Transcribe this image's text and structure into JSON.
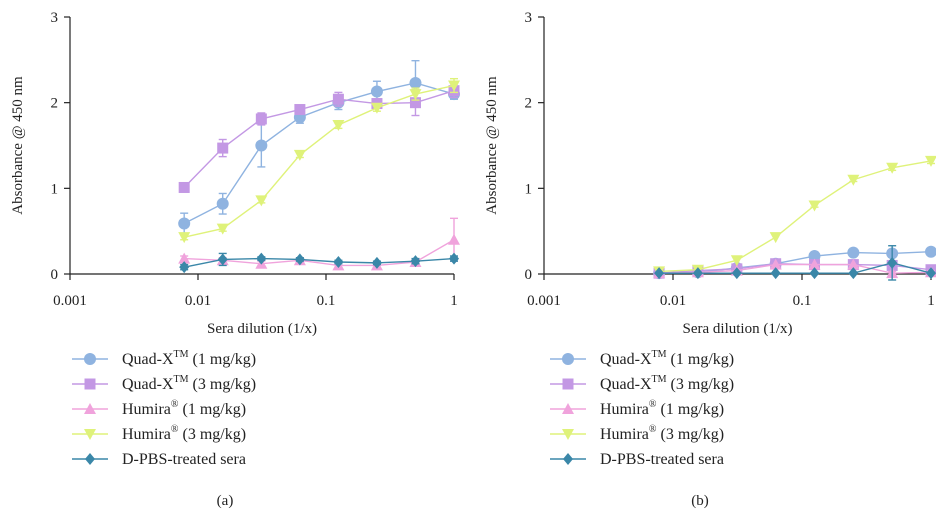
{
  "chart_data": [
    {
      "type": "line",
      "panel_label": "(a)",
      "xlabel": "Sera dilution (1/x)",
      "ylabel": "Absorbance @ 450 nm",
      "xscale": "log",
      "xlim": [
        0.001,
        1
      ],
      "ylim": [
        0,
        3
      ],
      "xticks": [
        {
          "v": 0.001,
          "label": "0.001"
        },
        {
          "v": 0.01,
          "label": "0.01"
        },
        {
          "v": 0.1,
          "label": "0.1"
        },
        {
          "v": 1,
          "label": "1"
        }
      ],
      "yticks": [
        {
          "v": 0,
          "label": "0"
        },
        {
          "v": 1,
          "label": "1"
        },
        {
          "v": 2,
          "label": "2"
        },
        {
          "v": 3,
          "label": "3"
        }
      ],
      "x": [
        0.0078,
        0.0156,
        0.03125,
        0.0625,
        0.125,
        0.25,
        0.5,
        1
      ],
      "series": [
        {
          "name": "Quad-X",
          "sup": "TM",
          "dose": " (1 mg/kg)",
          "color": "#8fb3e0",
          "marker": "circle",
          "values": [
            0.59,
            0.82,
            1.5,
            1.83,
            2.0,
            2.13,
            2.23,
            2.1
          ],
          "errors": [
            0.12,
            0.12,
            0.25,
            0.07,
            0.08,
            0.12,
            0.26,
            0.06
          ]
        },
        {
          "name": "Quad-X",
          "sup": "TM",
          "dose": " (3 mg/kg)",
          "color": "#c398e4",
          "marker": "square",
          "values": [
            1.01,
            1.47,
            1.81,
            1.92,
            2.04,
            1.99,
            2.0,
            2.14
          ],
          "errors": [
            0.0,
            0.1,
            0.07,
            0.04,
            0.08,
            0.05,
            0.15,
            0.08
          ]
        },
        {
          "name": "Humira",
          "sup": "®",
          "dose": " (1 mg/kg)",
          "color": "#f0a3dc",
          "marker": "triangle-up",
          "values": [
            0.18,
            0.16,
            0.12,
            0.16,
            0.1,
            0.1,
            0.14,
            0.4
          ],
          "errors": [
            0.03,
            0.03,
            0.03,
            0.03,
            0.03,
            0.02,
            0.03,
            0.25
          ]
        },
        {
          "name": "Humira",
          "sup": "®",
          "dose": " (3 mg/kg)",
          "color": "#dff27a",
          "marker": "triangle-down",
          "values": [
            0.43,
            0.53,
            0.86,
            1.39,
            1.74,
            1.94,
            2.1,
            2.2
          ],
          "errors": [
            0.03,
            0.03,
            0.03,
            0.03,
            0.04,
            0.04,
            0.07,
            0.08
          ]
        },
        {
          "name": "D-PBS-treated sera",
          "sup": "",
          "dose": "",
          "color": "#3a87a8",
          "marker": "diamond",
          "values": [
            0.08,
            0.17,
            0.18,
            0.17,
            0.14,
            0.13,
            0.15,
            0.18
          ],
          "errors": [
            0.03,
            0.07,
            0.02,
            0.02,
            0.02,
            0.02,
            0.03,
            0.03
          ]
        }
      ]
    },
    {
      "type": "line",
      "panel_label": "(b)",
      "xlabel": "Sera dilution (1/x)",
      "ylabel": "Absorbance @ 450 nm",
      "xscale": "log",
      "xlim": [
        0.001,
        1
      ],
      "ylim": [
        0,
        3
      ],
      "xticks": [
        {
          "v": 0.001,
          "label": "0.001"
        },
        {
          "v": 0.01,
          "label": "0.01"
        },
        {
          "v": 0.1,
          "label": "0.1"
        },
        {
          "v": 1,
          "label": "1"
        }
      ],
      "yticks": [
        {
          "v": 0,
          "label": "0"
        },
        {
          "v": 1,
          "label": "1"
        },
        {
          "v": 2,
          "label": "2"
        },
        {
          "v": 3,
          "label": "3"
        }
      ],
      "x": [
        0.0078,
        0.0156,
        0.03125,
        0.0625,
        0.125,
        0.25,
        0.5,
        1
      ],
      "series": [
        {
          "name": "Quad-X",
          "sup": "TM",
          "dose": " (1 mg/kg)",
          "color": "#8fb3e0",
          "marker": "circle",
          "values": [
            0.01,
            0.02,
            0.07,
            0.12,
            0.21,
            0.25,
            0.24,
            0.26
          ],
          "errors": [
            0,
            0,
            0.01,
            0.01,
            0.02,
            0.02,
            0.03,
            0.02
          ]
        },
        {
          "name": "Quad-X",
          "sup": "TM",
          "dose": " (3 mg/kg)",
          "color": "#c398e4",
          "marker": "square",
          "values": [
            0.01,
            0.04,
            0.06,
            0.12,
            0.11,
            0.11,
            0.1,
            0.05
          ],
          "errors": [
            0,
            0,
            0.01,
            0.01,
            0.01,
            0.01,
            0.02,
            0.02
          ]
        },
        {
          "name": "Humira",
          "sup": "®",
          "dose": " (1 mg/kg)",
          "color": "#f0a3dc",
          "marker": "triangle-up",
          "values": [
            0.01,
            0.02,
            0.04,
            0.11,
            0.11,
            0.11,
            0.01,
            0.02
          ],
          "errors": [
            0,
            0,
            0.01,
            0.01,
            0.01,
            0.01,
            0.02,
            0.02
          ]
        },
        {
          "name": "Humira",
          "sup": "®",
          "dose": " (3 mg/kg)",
          "color": "#dff27a",
          "marker": "triangle-down",
          "values": [
            0.03,
            0.05,
            0.16,
            0.43,
            0.8,
            1.1,
            1.24,
            1.32
          ],
          "errors": [
            0,
            0,
            0.01,
            0.01,
            0.02,
            0.02,
            0.03,
            0.03
          ]
        },
        {
          "name": "D-PBS-treated sera",
          "sup": "",
          "dose": "",
          "color": "#3a87a8",
          "marker": "diamond",
          "values": [
            0.01,
            0.01,
            0.01,
            0.01,
            0.01,
            0.01,
            0.13,
            0.01
          ],
          "errors": [
            0,
            0,
            0,
            0,
            0,
            0,
            0.2,
            0
          ]
        }
      ]
    }
  ]
}
